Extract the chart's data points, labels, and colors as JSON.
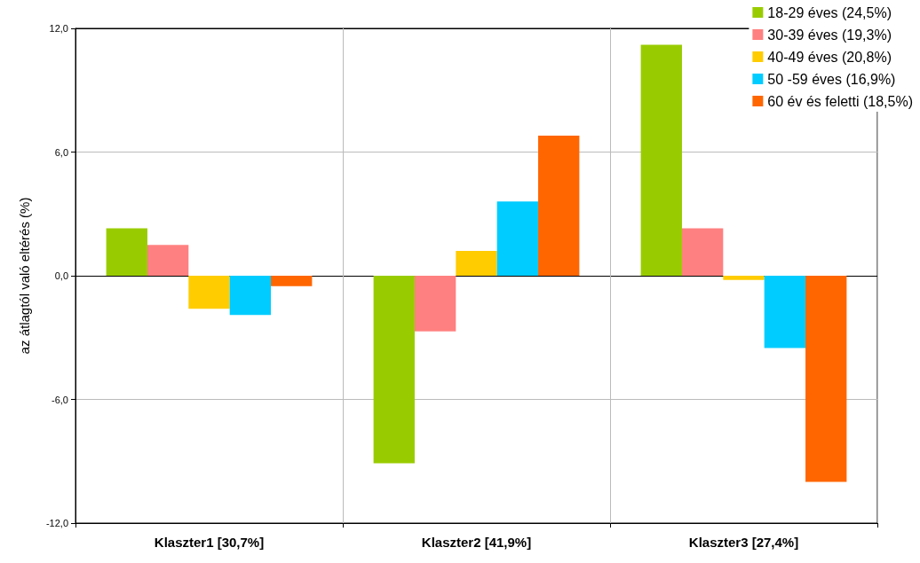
{
  "chart_data": {
    "type": "bar",
    "ylabel": "az átlagtól való eltérés (%)",
    "categories": [
      "Klaszter1 [30,7%]",
      "Klaszter2 [41,9%]",
      "Klaszter3 [27,4%]"
    ],
    "series": [
      {
        "name": "18-29 éves (24,5%)",
        "color": "#99cc00",
        "values": [
          2.3,
          -9.1,
          11.2
        ]
      },
      {
        "name": "30-39 éves (19,3%)",
        "color": "#ff8080",
        "values": [
          1.5,
          -2.7,
          2.3
        ]
      },
      {
        "name": "40-49 éves (20,8%)",
        "color": "#ffcc00",
        "values": [
          -1.6,
          1.2,
          -0.2
        ]
      },
      {
        "name": "50 -59 éves (16,9%)",
        "color": "#00ccff",
        "values": [
          -1.9,
          3.6,
          -3.5
        ]
      },
      {
        "name": "60 év és feletti (18,5%)",
        "color": "#ff6600",
        "values": [
          -0.5,
          6.8,
          -10.0
        ]
      }
    ],
    "ylim": [
      -12,
      12
    ],
    "yticks": [
      {
        "value": -12,
        "label": "-12,0"
      },
      {
        "value": -6,
        "label": "-6,0"
      },
      {
        "value": 0,
        "label": "0,0"
      },
      {
        "value": 6,
        "label": "6,0"
      },
      {
        "value": 12,
        "label": "12,0"
      }
    ],
    "grid": true,
    "legend": "top right"
  }
}
